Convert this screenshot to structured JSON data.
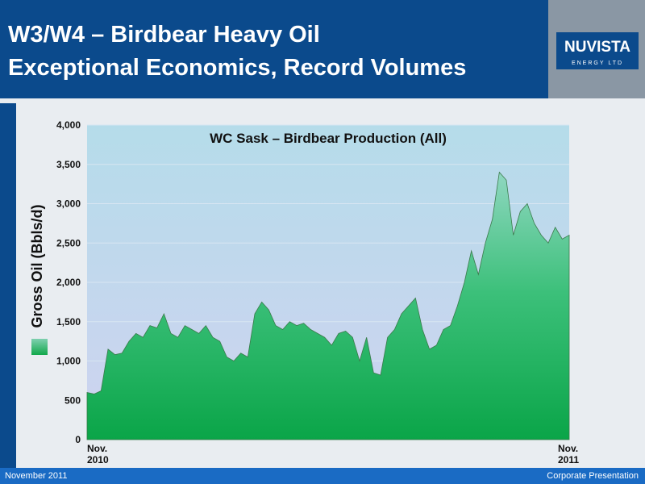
{
  "header": {
    "title_lines": [
      "W3/W4 – Birdbear Heavy Oil",
      "Exceptional Economics, Record Volumes"
    ],
    "logo": {
      "name": "NUVISTA",
      "tagline": "ENERGY LTD"
    }
  },
  "footer": {
    "left": "November  2011",
    "right": "Corporate Presentation"
  },
  "chart_data": {
    "type": "area",
    "title": "WC Sask – Birdbear Production (All)",
    "ylabel": "Gross Oil (Bbls/d)",
    "color": "#12a84c",
    "categories": [
      "Nov. 2010",
      null,
      null,
      null,
      null,
      null,
      null,
      null,
      null,
      null,
      null,
      null,
      null,
      null,
      null,
      null,
      null,
      null,
      null,
      null,
      null,
      null,
      null,
      null,
      null,
      null,
      null,
      null,
      null,
      null,
      null,
      null,
      null,
      null,
      null,
      null,
      null,
      null,
      null,
      null,
      null,
      null,
      null,
      null,
      null,
      null,
      null,
      null,
      null,
      null,
      null,
      null,
      null,
      null,
      null,
      null,
      null,
      null,
      null,
      null,
      null,
      null,
      null,
      null,
      null,
      null,
      null,
      null,
      null,
      "Nov. 2011"
    ],
    "values": [
      600,
      580,
      620,
      1150,
      1080,
      1100,
      1250,
      1350,
      1300,
      1450,
      1420,
      1600,
      1350,
      1300,
      1450,
      1400,
      1350,
      1450,
      1300,
      1250,
      1050,
      1000,
      1100,
      1050,
      1600,
      1750,
      1650,
      1450,
      1400,
      1500,
      1450,
      1480,
      1400,
      1350,
      1300,
      1200,
      1350,
      1380,
      1300,
      1000,
      1300,
      850,
      820,
      1300,
      1400,
      1600,
      1700,
      1800,
      1400,
      1150,
      1200,
      1400,
      1450,
      1700,
      2000,
      2400,
      2100,
      2500,
      2800,
      3400,
      3300,
      2600,
      2900,
      3000,
      2750,
      2600,
      2500,
      2700,
      2550,
      2600
    ],
    "ylim": [
      0,
      4000
    ],
    "yticks": [
      0,
      500,
      {
        "value": 1000,
        "label": "1,000"
      },
      {
        "value": 1500,
        "label": "1,500"
      },
      {
        "value": 2000,
        "label": "2,000"
      },
      {
        "value": 2500,
        "label": "2,500"
      },
      {
        "value": 3000,
        "label": "3,000"
      },
      {
        "value": 3500,
        "label": "3,500"
      },
      {
        "value": 4000,
        "label": "4,000"
      }
    ],
    "grid": true
  }
}
